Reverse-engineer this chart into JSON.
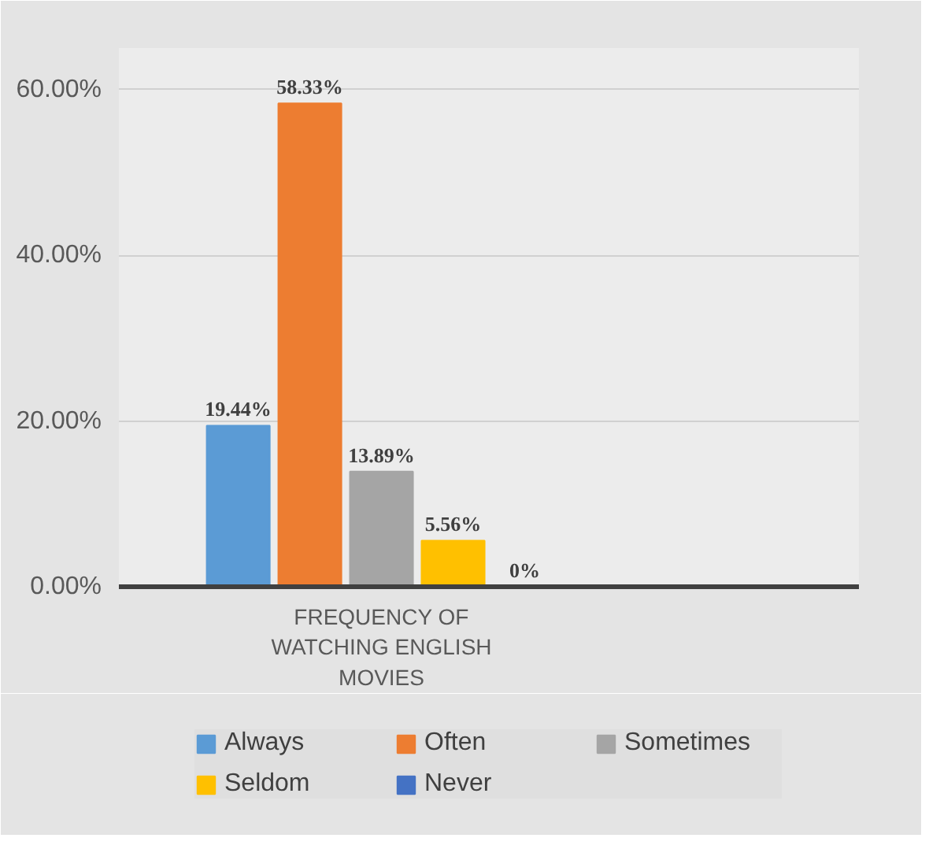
{
  "chart_data": {
    "type": "bar",
    "categories": [
      "FREQUENCY OF WATCHING ENGLISH MOVIES"
    ],
    "ylim": [
      0,
      65
    ],
    "yticks": [
      {
        "value": 0,
        "label": "0.00%"
      },
      {
        "value": 20,
        "label": "20.00%"
      },
      {
        "value": 40,
        "label": "40.00%"
      },
      {
        "value": 60,
        "label": "60.00%"
      }
    ],
    "grid": "y",
    "legend": "bottom",
    "series": [
      {
        "name": "Always",
        "color": "#5b9bd5",
        "values": [
          19.44
        ],
        "value_labels": [
          "19.44%"
        ]
      },
      {
        "name": "Often",
        "color": "#ed7d31",
        "values": [
          58.33
        ],
        "value_labels": [
          "58.33%"
        ]
      },
      {
        "name": "Sometimes",
        "color": "#a5a5a5",
        "values": [
          13.89
        ],
        "value_labels": [
          "13.89%"
        ]
      },
      {
        "name": "Seldom",
        "color": "#ffc000",
        "values": [
          5.56
        ],
        "value_labels": [
          "5.56%"
        ]
      },
      {
        "name": "Never",
        "color": "#4472c4",
        "values": [
          0
        ],
        "value_labels": [
          "0%"
        ]
      }
    ]
  }
}
